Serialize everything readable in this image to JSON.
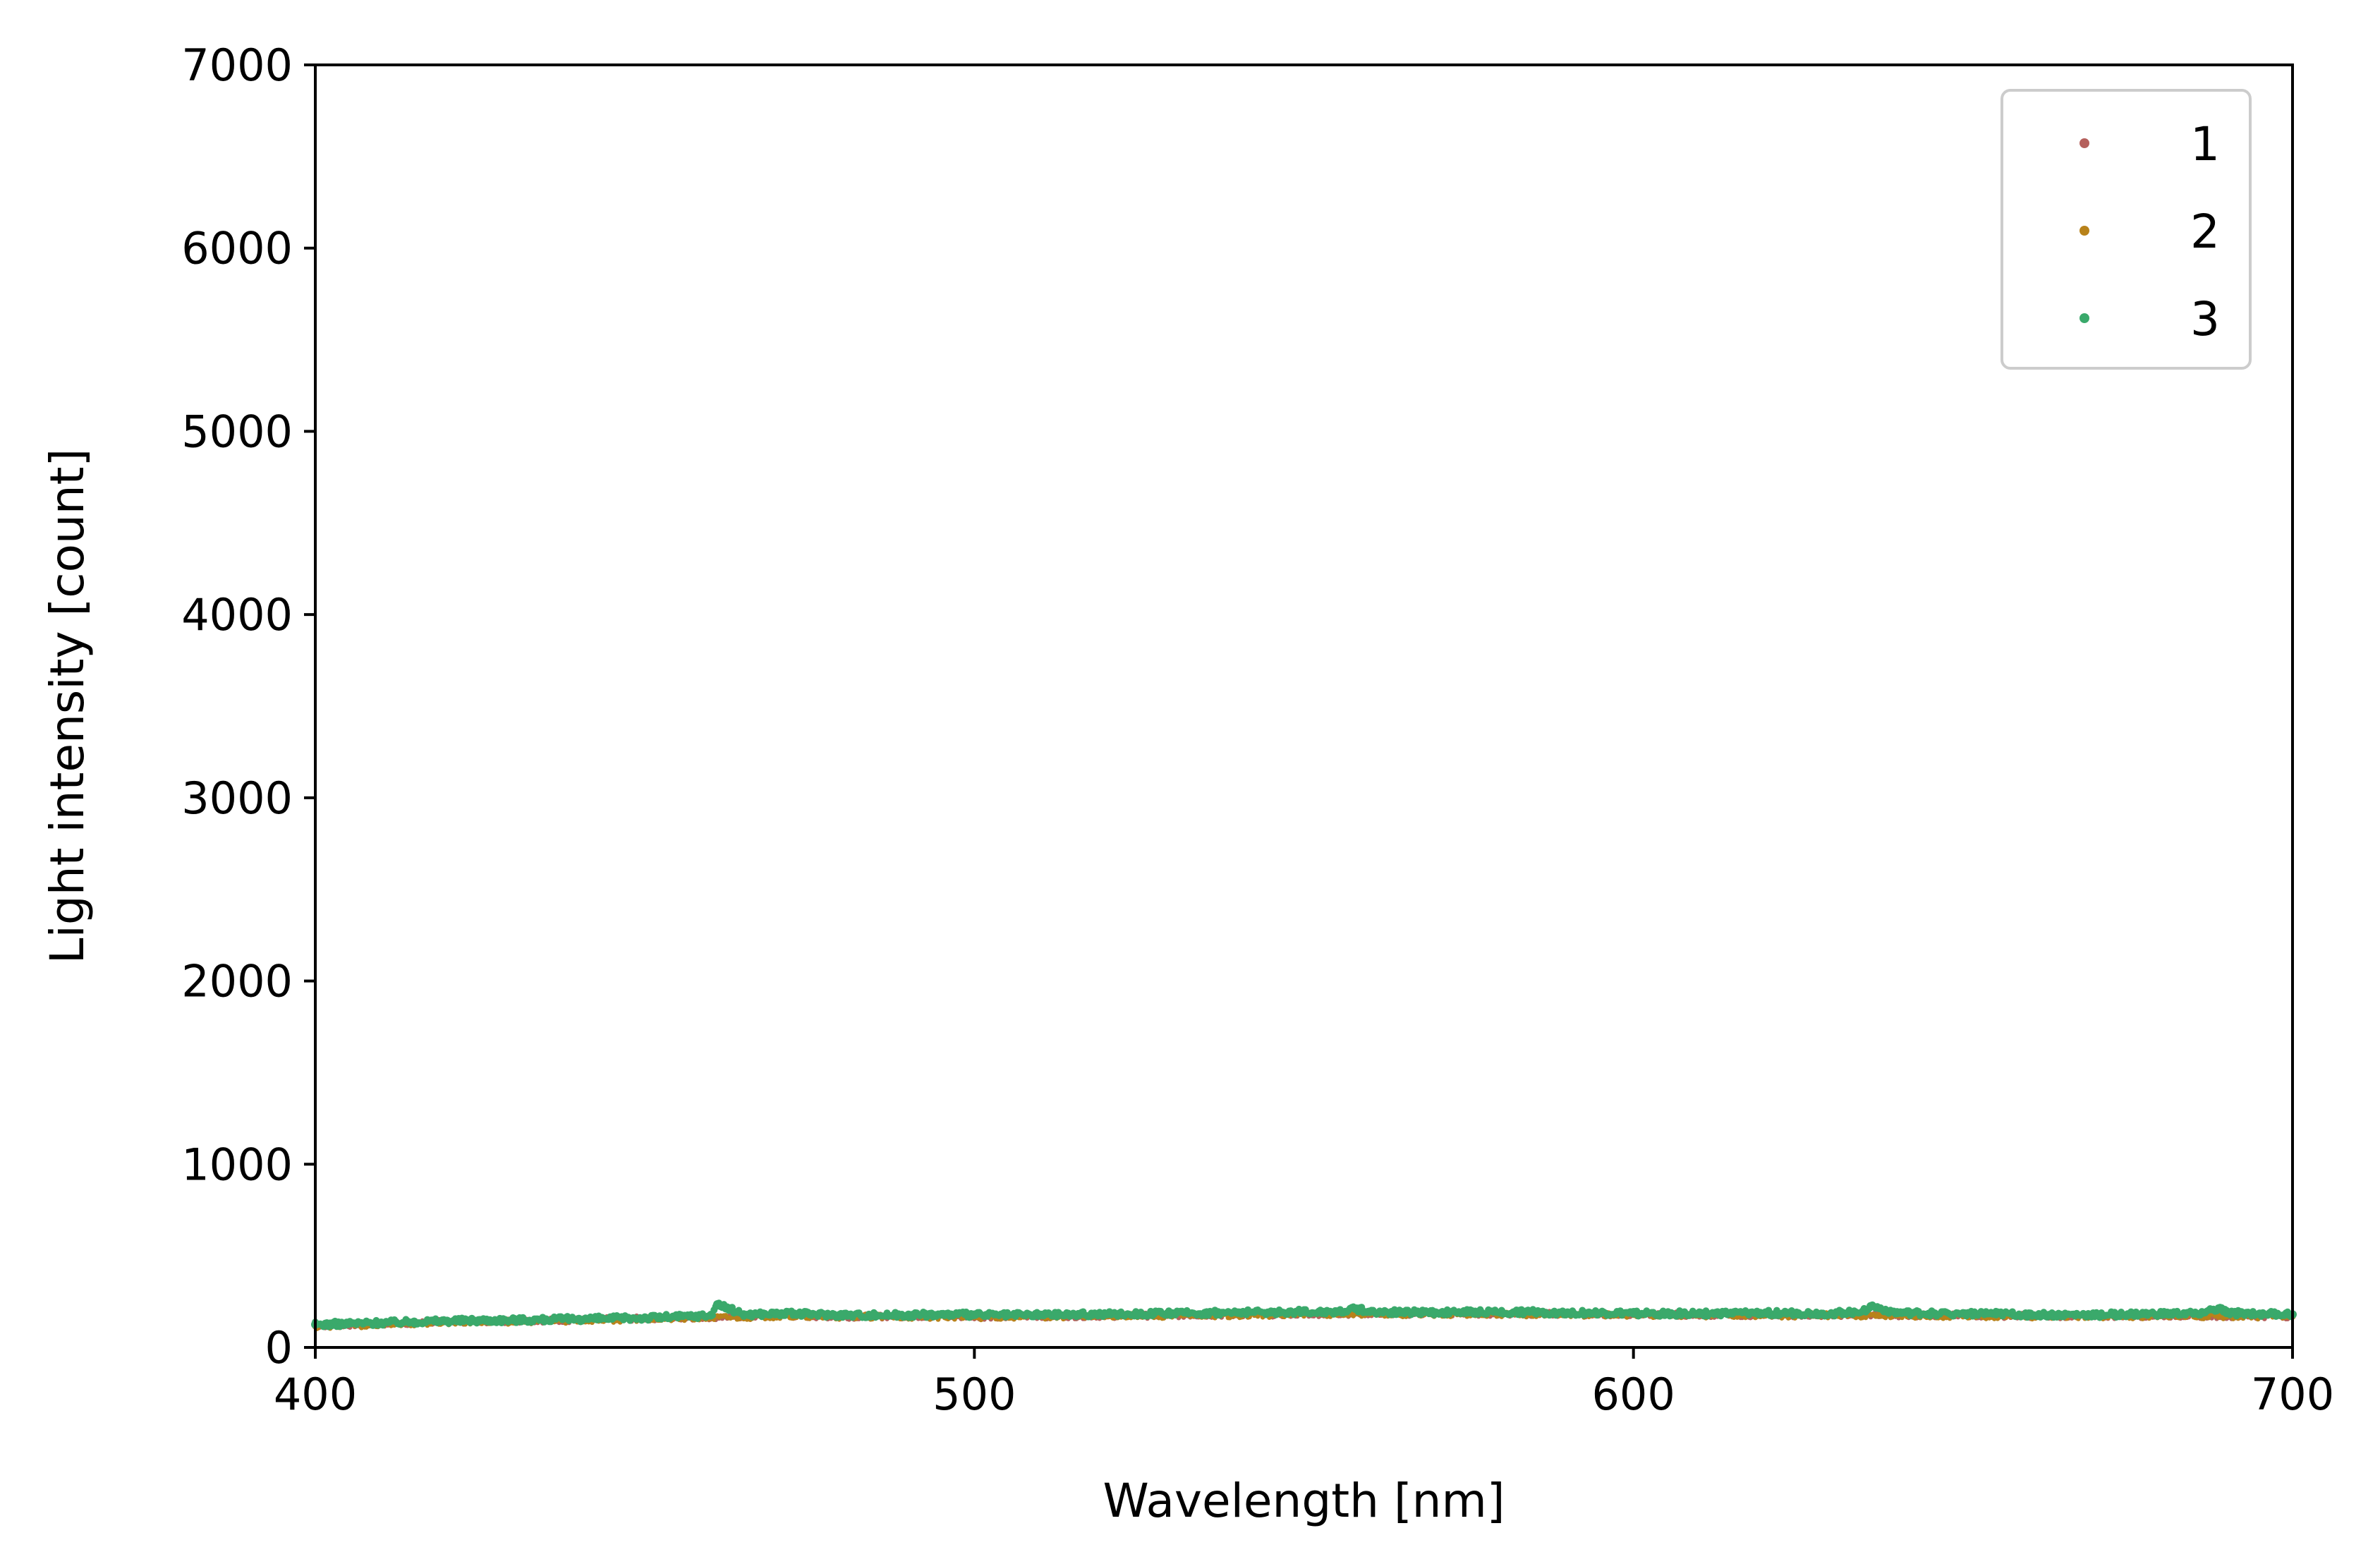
{
  "chart_data": {
    "type": "scatter",
    "title": "",
    "xlabel": "Wavelength [nm]",
    "ylabel": "Light intensity [count]",
    "xlim": [
      400,
      700
    ],
    "ylim": [
      0,
      7000
    ],
    "xticks": [
      400,
      500,
      600,
      700
    ],
    "yticks": [
      0,
      1000,
      2000,
      3000,
      4000,
      5000,
      6000,
      7000
    ],
    "grid": false,
    "legend_position": "top-right",
    "series": [
      {
        "name": "1",
        "color": "#b5605c",
        "points": [
          [
            400,
            118
          ],
          [
            410,
            128
          ],
          [
            420,
            140
          ],
          [
            430,
            145
          ],
          [
            440,
            150
          ],
          [
            450,
            158
          ],
          [
            460,
            165
          ],
          [
            470,
            172
          ],
          [
            480,
            168
          ],
          [
            490,
            170
          ],
          [
            500,
            168
          ],
          [
            510,
            170
          ],
          [
            520,
            172
          ],
          [
            530,
            175
          ],
          [
            540,
            178
          ],
          [
            550,
            182
          ],
          [
            560,
            185
          ],
          [
            570,
            183
          ],
          [
            580,
            184
          ],
          [
            590,
            182
          ],
          [
            600,
            180
          ],
          [
            610,
            178
          ],
          [
            620,
            176
          ],
          [
            630,
            178
          ],
          [
            640,
            176
          ],
          [
            650,
            174
          ],
          [
            660,
            172
          ],
          [
            670,
            171
          ],
          [
            680,
            173
          ],
          [
            690,
            172
          ],
          [
            700,
            170
          ]
        ]
      },
      {
        "name": "2",
        "color": "#b8821a",
        "points": [
          [
            400,
            115
          ],
          [
            410,
            125
          ],
          [
            420,
            138
          ],
          [
            430,
            142
          ],
          [
            440,
            148
          ],
          [
            450,
            155
          ],
          [
            460,
            162
          ],
          [
            470,
            170
          ],
          [
            480,
            166
          ],
          [
            490,
            168
          ],
          [
            500,
            166
          ],
          [
            510,
            168
          ],
          [
            520,
            170
          ],
          [
            530,
            173
          ],
          [
            540,
            176
          ],
          [
            550,
            180
          ],
          [
            560,
            183
          ],
          [
            570,
            181
          ],
          [
            580,
            182
          ],
          [
            590,
            180
          ],
          [
            600,
            178
          ],
          [
            610,
            176
          ],
          [
            620,
            174
          ],
          [
            630,
            176
          ],
          [
            640,
            174
          ],
          [
            650,
            172
          ],
          [
            660,
            170
          ],
          [
            670,
            169
          ],
          [
            680,
            171
          ],
          [
            690,
            170
          ],
          [
            700,
            168
          ]
        ]
      },
      {
        "name": "3",
        "color": "#3aa96b",
        "points": [
          [
            400,
            125
          ],
          [
            405,
            130
          ],
          [
            410,
            135
          ],
          [
            415,
            140
          ],
          [
            420,
            145
          ],
          [
            425,
            148
          ],
          [
            430,
            150
          ],
          [
            435,
            152
          ],
          [
            440,
            155
          ],
          [
            445,
            158
          ],
          [
            450,
            162
          ],
          [
            455,
            168
          ],
          [
            460,
            175
          ],
          [
            461,
            235
          ],
          [
            465,
            180
          ],
          [
            470,
            185
          ],
          [
            475,
            182
          ],
          [
            480,
            178
          ],
          [
            485,
            176
          ],
          [
            490,
            178
          ],
          [
            495,
            180
          ],
          [
            500,
            178
          ],
          [
            505,
            176
          ],
          [
            510,
            178
          ],
          [
            515,
            180
          ],
          [
            520,
            182
          ],
          [
            525,
            184
          ],
          [
            530,
            185
          ],
          [
            535,
            188
          ],
          [
            540,
            190
          ],
          [
            545,
            192
          ],
          [
            550,
            194
          ],
          [
            555,
            196
          ],
          [
            558,
            210
          ],
          [
            560,
            195
          ],
          [
            565,
            192
          ],
          [
            570,
            190
          ],
          [
            575,
            192
          ],
          [
            580,
            194
          ],
          [
            585,
            192
          ],
          [
            590,
            190
          ],
          [
            595,
            188
          ],
          [
            600,
            186
          ],
          [
            605,
            185
          ],
          [
            610,
            184
          ],
          [
            615,
            186
          ],
          [
            620,
            188
          ],
          [
            625,
            186
          ],
          [
            630,
            184
          ],
          [
            635,
            200
          ],
          [
            636,
            225
          ],
          [
            640,
            188
          ],
          [
            645,
            185
          ],
          [
            650,
            186
          ],
          [
            655,
            182
          ],
          [
            660,
            178
          ],
          [
            665,
            176
          ],
          [
            670,
            178
          ],
          [
            675,
            180
          ],
          [
            680,
            182
          ],
          [
            685,
            185
          ],
          [
            689,
            210
          ],
          [
            690,
            188
          ],
          [
            695,
            184
          ],
          [
            700,
            180
          ]
        ]
      }
    ]
  }
}
